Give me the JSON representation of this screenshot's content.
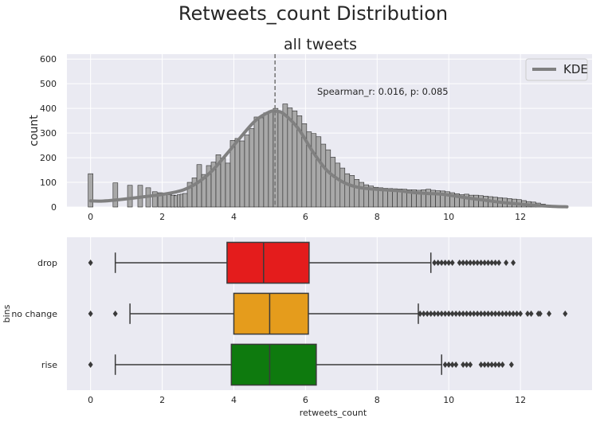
{
  "figure": {
    "suptitle": "Retweets_count Distribution"
  },
  "chart_data": [
    {
      "type": "bar",
      "subtype": "histogram",
      "title": "all tweets",
      "xlabel": "",
      "ylabel": "count",
      "xlim": [
        -0.66,
        14.0
      ],
      "ylim": [
        0,
        620
      ],
      "xticks": [
        0,
        2,
        4,
        6,
        8,
        10,
        12
      ],
      "yticks": [
        0,
        100,
        200,
        300,
        400,
        500,
        600
      ],
      "grid": true,
      "bar_color": "#a8a8a8",
      "bin_width": 0.1333,
      "spikes": [
        {
          "x": 0.0,
          "y": 135
        },
        {
          "x": 0.693,
          "y": 98
        },
        {
          "x": 1.099,
          "y": 88
        },
        {
          "x": 1.386,
          "y": 88
        },
        {
          "x": 1.609,
          "y": 78
        },
        {
          "x": 1.792,
          "y": 62
        },
        {
          "x": 1.946,
          "y": 58
        },
        {
          "x": 2.079,
          "y": 55
        },
        {
          "x": 2.197,
          "y": 50
        },
        {
          "x": 2.303,
          "y": 48
        },
        {
          "x": 2.398,
          "y": 46
        },
        {
          "x": 2.485,
          "y": 50
        },
        {
          "x": 2.565,
          "y": 52
        },
        {
          "x": 2.639,
          "y": 55
        }
      ],
      "bin_start": 2.7,
      "counts": [
        100,
        118,
        172,
        132,
        168,
        182,
        212,
        198,
        178,
        270,
        278,
        268,
        292,
        318,
        365,
        362,
        382,
        390,
        400,
        384,
        418,
        402,
        390,
        370,
        338,
        305,
        298,
        285,
        255,
        232,
        202,
        178,
        158,
        135,
        128,
        112,
        100,
        90,
        85,
        80,
        78,
        76,
        75,
        74,
        73,
        72,
        70,
        70,
        68,
        70,
        72,
        68,
        66,
        65,
        62,
        58,
        54,
        50,
        52,
        48,
        48,
        46,
        44,
        42,
        40,
        38,
        36,
        34,
        32,
        30,
        26,
        22,
        20,
        16,
        12,
        8,
        4,
        2,
        1
      ],
      "kde": {
        "name": "KDE",
        "color": "#808080",
        "x": [
          0,
          0.3,
          0.6,
          1.0,
          1.4,
          1.8,
          2.2,
          2.6,
          3.0,
          3.4,
          3.8,
          4.2,
          4.6,
          5.0,
          5.2,
          5.4,
          5.8,
          6.2,
          6.6,
          7.0,
          7.4,
          7.8,
          8.2,
          8.6,
          9.0,
          9.4,
          9.8,
          10.2,
          10.6,
          11.0,
          11.4,
          11.8,
          12.2,
          12.6,
          13.0,
          13.3
        ],
        "y": [
          25,
          24,
          27,
          33,
          40,
          47,
          56,
          70,
          100,
          148,
          215,
          285,
          350,
          386,
          388,
          377,
          318,
          225,
          148,
          105,
          82,
          74,
          70,
          66,
          59,
          55,
          52,
          44,
          35,
          28,
          20,
          14,
          9,
          5,
          2,
          1
        ]
      },
      "median_line": {
        "x": 5.15,
        "style": "dashed"
      },
      "annotation": "Spearman_r: 0.016, p: 0.085",
      "legend": {
        "entries": [
          "KDE"
        ],
        "placement": "top-right"
      }
    },
    {
      "type": "box",
      "title": "",
      "xlabel": "retweets_count",
      "ylabel": "bins",
      "xlim": [
        -0.66,
        14.0
      ],
      "xticks": [
        0,
        2,
        4,
        6,
        8,
        10,
        12
      ],
      "grid": true,
      "categories": [
        "drop",
        "no change",
        "rise"
      ],
      "boxes": [
        {
          "name": "drop",
          "color": "#e41c1c",
          "whisker_low": 0.69,
          "q1": 3.81,
          "median": 4.83,
          "q3": 6.1,
          "whisker_high": 9.5,
          "outliers_low": [
            0
          ],
          "outliers_high": [
            9.6,
            9.7,
            9.8,
            9.9,
            10.0,
            10.1,
            10.3,
            10.4,
            10.5,
            10.6,
            10.7,
            10.8,
            10.9,
            11.0,
            11.1,
            11.2,
            11.3,
            11.4,
            11.6,
            11.8
          ]
        },
        {
          "name": "no change",
          "color": "#e59c1c",
          "whisker_low": 1.1,
          "q1": 4.0,
          "median": 5.0,
          "q3": 6.08,
          "whisker_high": 9.15,
          "outliers_low": [
            0,
            0.69
          ],
          "outliers_high": [
            9.2,
            9.3,
            9.4,
            9.5,
            9.6,
            9.7,
            9.8,
            9.9,
            10.0,
            10.1,
            10.2,
            10.3,
            10.4,
            10.5,
            10.6,
            10.7,
            10.8,
            10.9,
            11.0,
            11.1,
            11.2,
            11.3,
            11.4,
            11.5,
            11.6,
            11.7,
            11.8,
            11.9,
            12.0,
            12.2,
            12.3,
            12.5,
            12.55,
            12.8,
            13.25
          ]
        },
        {
          "name": "rise",
          "color": "#0e7a0e",
          "whisker_low": 0.69,
          "q1": 3.93,
          "median": 5.0,
          "q3": 6.3,
          "whisker_high": 9.8,
          "outliers_low": [
            0
          ],
          "outliers_high": [
            9.9,
            10.0,
            10.1,
            10.2,
            10.4,
            10.5,
            10.6,
            10.9,
            11.0,
            11.1,
            11.2,
            11.3,
            11.4,
            11.5,
            11.75
          ]
        }
      ]
    }
  ]
}
